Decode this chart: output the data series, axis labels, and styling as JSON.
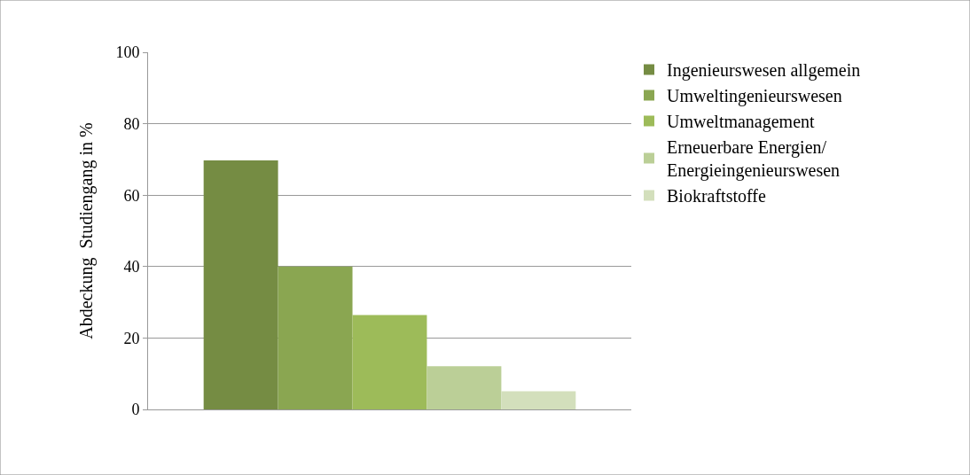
{
  "chart_data": {
    "type": "bar",
    "ylabel": "Abdeckung  Studiengang in %",
    "categories": [
      null
    ],
    "series": [
      {
        "name": "Ingenieurswesen allgemein",
        "color": "#758c43",
        "values": [
          69.7
        ]
      },
      {
        "name": "Umweltingenieurswesen",
        "color": "#8aa651",
        "values": [
          40
        ]
      },
      {
        "name": "Umweltmanagement",
        "color": "#9dbb59",
        "values": [
          26.4
        ]
      },
      {
        "name": "Erneuerbare Energien/\nEnergieingenieurswesen",
        "color": "#bbcf97",
        "values": [
          12.1
        ]
      },
      {
        "name": "Biokraftstoffe",
        "color": "#d3dfbc",
        "values": [
          5.1
        ]
      }
    ],
    "ylim": [
      0,
      100
    ],
    "yticks": [
      0,
      20,
      40,
      60,
      80,
      100
    ],
    "grid": "y",
    "legend": "right",
    "tick_labels": "y"
  }
}
